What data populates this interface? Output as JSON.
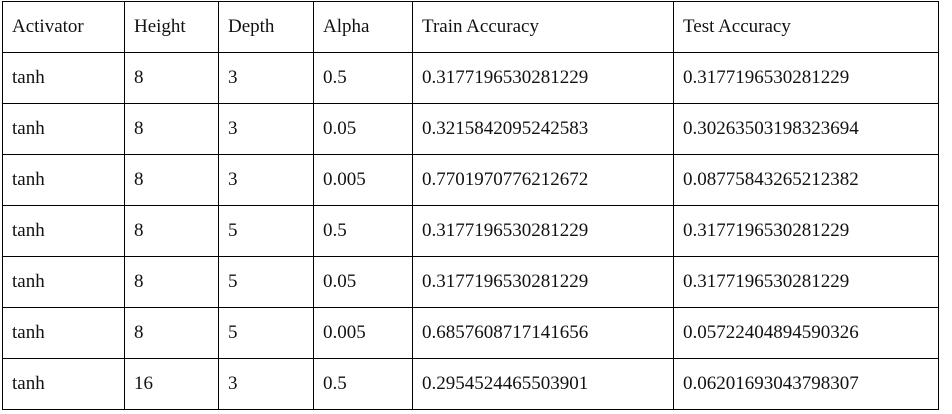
{
  "table": {
    "headers": [
      "Activator",
      "Height",
      "Depth",
      "Alpha",
      "Train Accuracy",
      "Test Accuracy"
    ],
    "rows": [
      [
        "tanh",
        "8",
        "3",
        "0.5",
        "0.3177196530281229",
        "0.3177196530281229"
      ],
      [
        "tanh",
        "8",
        "3",
        "0.05",
        "0.3215842095242583",
        "0.30263503198323694"
      ],
      [
        "tanh",
        "8",
        "3",
        "0.005",
        "0.7701970776212672",
        "0.08775843265212382"
      ],
      [
        "tanh",
        "8",
        "5",
        "0.5",
        "0.3177196530281229",
        "0.3177196530281229"
      ],
      [
        "tanh",
        "8",
        "5",
        "0.05",
        "0.3177196530281229",
        "0.3177196530281229"
      ],
      [
        "tanh",
        "8",
        "5",
        "0.005",
        "0.6857608717141656",
        "0.05722404894590326"
      ],
      [
        "tanh",
        "16",
        "3",
        "0.5",
        "0.2954524465503901",
        "0.06201693043798307"
      ]
    ]
  }
}
